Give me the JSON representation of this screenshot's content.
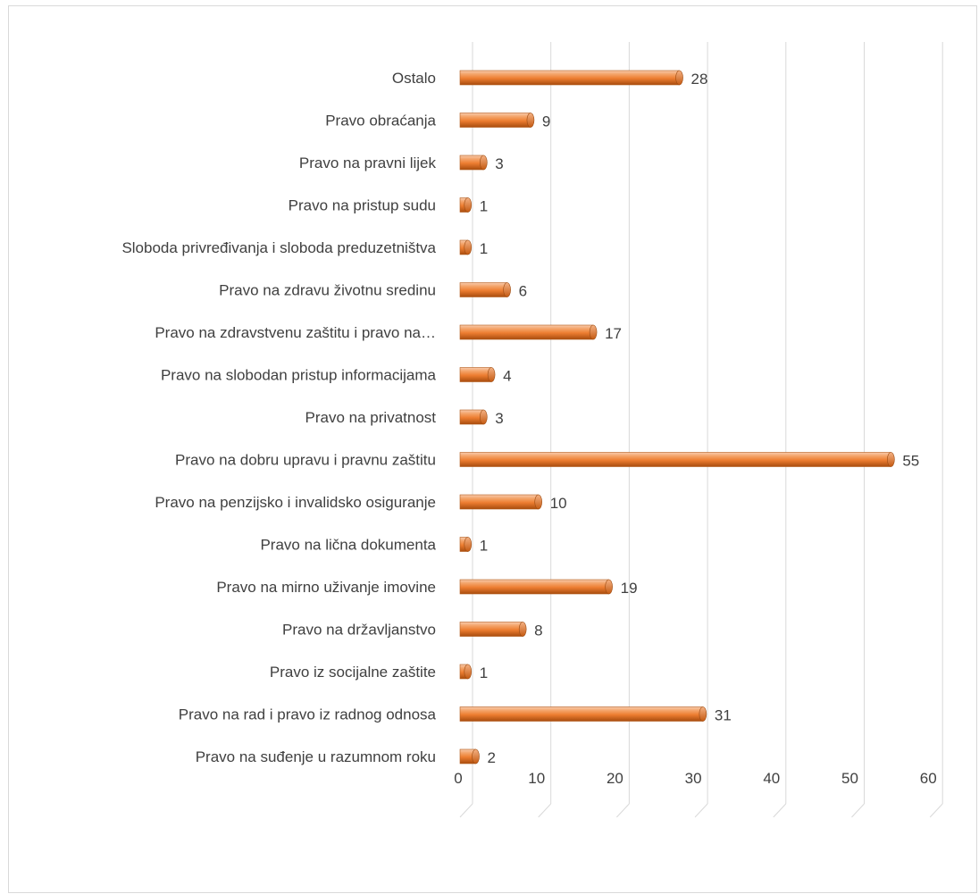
{
  "chart_data": {
    "type": "bar",
    "orientation": "horizontal",
    "style": "3d-cylinder",
    "bar_color": "#ED7D31",
    "bar_dark_color": "#C55A11",
    "bar_light_color": "#F4B183",
    "grid": true,
    "xlim": [
      0,
      60
    ],
    "x_ticks": [
      0,
      10,
      20,
      30,
      40,
      50,
      60
    ],
    "categories": [
      "Ostalo",
      "Pravo obraćanja",
      "Pravo na pravni lijek",
      "Pravo na pristup sudu",
      "Sloboda privređivanja i sloboda preduzetništva",
      "Pravo na zdravu životnu sredinu",
      "Pravo na zdravstvenu zaštitu i pravo na…",
      "Pravo na slobodan pristup informacijama",
      "Pravo na privatnost",
      "Pravo na dobru upravu i pravnu zaštitu",
      "Pravo na penzijsko i invalidsko osiguranje",
      "Pravo na lična dokumenta",
      "Pravo na mirno uživanje imovine",
      "Pravo na državljanstvo",
      "Pravo iz socijalne zaštite",
      "Pravo na rad i pravo iz radnog odnosa",
      "Pravo na suđenje u razumnom roku"
    ],
    "values": [
      28,
      9,
      3,
      1,
      1,
      6,
      17,
      4,
      3,
      55,
      10,
      1,
      19,
      8,
      1,
      31,
      2
    ]
  }
}
